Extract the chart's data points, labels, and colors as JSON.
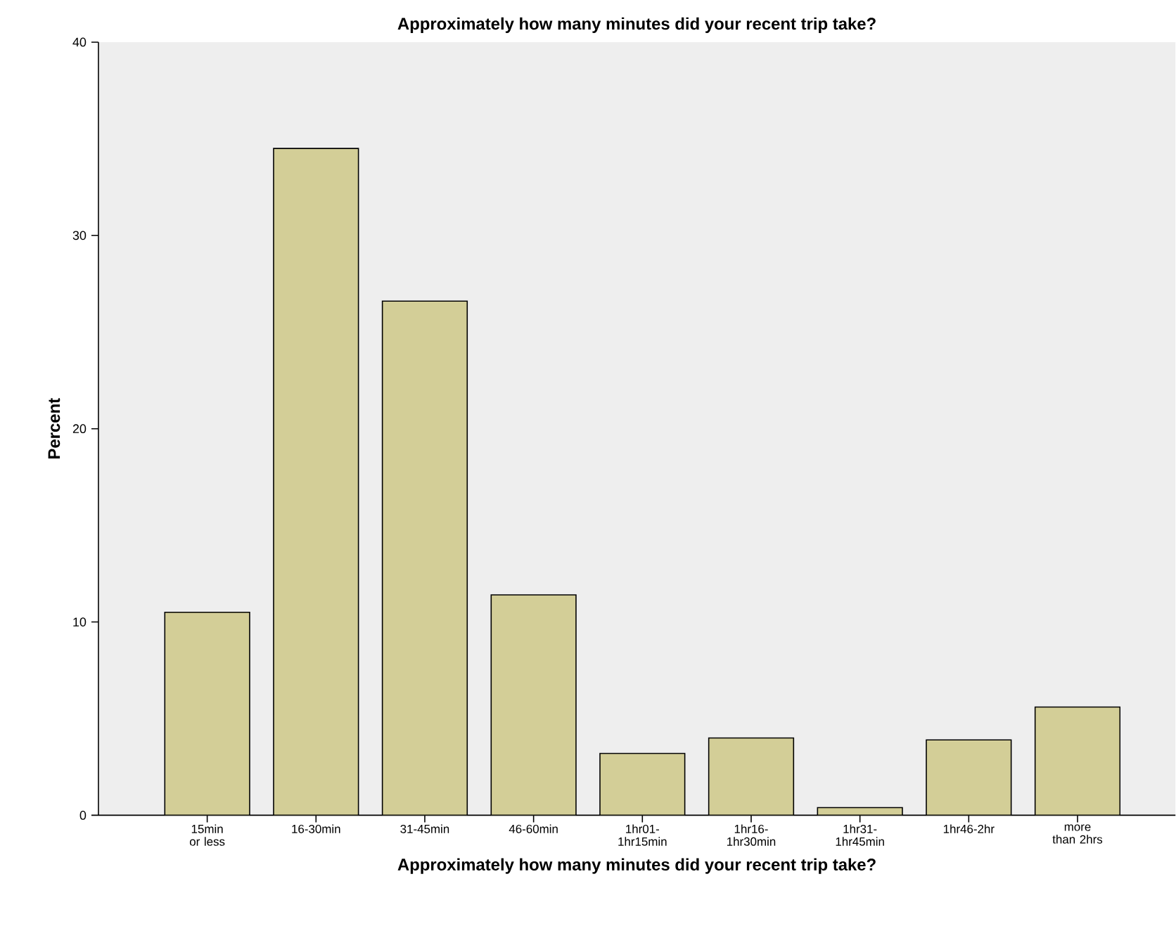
{
  "chart_data": {
    "type": "bar",
    "title": "Approximately how many minutes did your recent trip take?",
    "xlabel": "Approximately how many minutes did your recent trip take?",
    "ylabel": "Percent",
    "categories": [
      "15min or less",
      "16-30min",
      "31-45min",
      "46-60min",
      "1hr01-1hr15min",
      "1hr16-1hr30min",
      "1hr31-1hr45min",
      "1hr46-2hr",
      "more than 2hrs"
    ],
    "values": [
      10.5,
      34.5,
      26.6,
      11.4,
      3.2,
      4.0,
      0.4,
      3.9,
      5.6
    ],
    "color": "#d3ce97",
    "ylim": [
      0,
      40
    ],
    "yticks": [
      0,
      10,
      20,
      30,
      40
    ],
    "grid": false
  }
}
